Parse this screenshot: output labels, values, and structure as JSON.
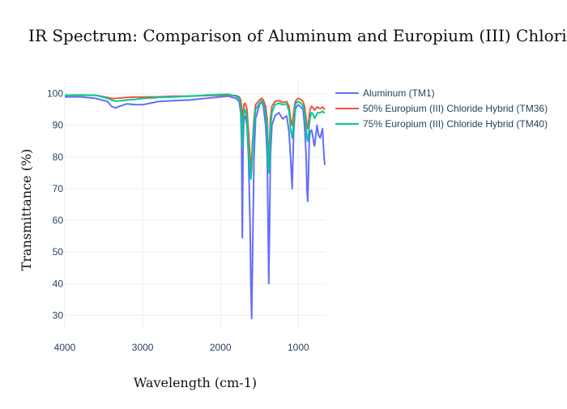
{
  "chart_data": {
    "type": "line",
    "title": "IR Spectrum: Comparison of Aluminum and Europium (III) Chloride Hybrid Products",
    "xlabel": "Wavelength (cm-1)",
    "ylabel": "Transmittance (%)",
    "xlim": [
      4000,
      650
    ],
    "ylim": [
      26,
      104
    ],
    "x_reversed": true,
    "x_ticks": [
      4000,
      3000,
      2000,
      1000
    ],
    "y_ticks": [
      30,
      40,
      50,
      60,
      70,
      80,
      90,
      100
    ],
    "grid": true,
    "legend_position": "right",
    "series": [
      {
        "name": "Aluminum (TM1)",
        "color": "#636efa",
        "x": [
          4000,
          3800,
          3600,
          3450,
          3400,
          3350,
          3300,
          3200,
          3100,
          3000,
          2900,
          2800,
          2600,
          2400,
          2200,
          2000,
          1900,
          1800,
          1760,
          1740,
          1730,
          1720,
          1710,
          1700,
          1690,
          1680,
          1660,
          1640,
          1620,
          1610,
          1600,
          1590,
          1570,
          1550,
          1500,
          1470,
          1450,
          1420,
          1400,
          1390,
          1380,
          1370,
          1360,
          1340,
          1300,
          1250,
          1200,
          1150,
          1120,
          1100,
          1080,
          1060,
          1050,
          1040,
          1020,
          1000,
          980,
          960,
          940,
          920,
          900,
          890,
          880,
          870,
          860,
          850,
          830,
          810,
          800,
          790,
          780,
          770,
          760,
          740,
          720,
          700,
          690,
          680,
          670,
          660
        ],
        "y": [
          99,
          99,
          98.5,
          97.5,
          96,
          95.5,
          96,
          96.8,
          96.5,
          96.5,
          97,
          97.5,
          97.8,
          98,
          98.5,
          99,
          99.2,
          98.5,
          97.5,
          94,
          86,
          54.5,
          84,
          92,
          93,
          92.5,
          90,
          80,
          58,
          40,
          29,
          45,
          80,
          92,
          96.5,
          97.5,
          96,
          90,
          80,
          60,
          40,
          58,
          80,
          90,
          93,
          94,
          92,
          93,
          88,
          80,
          70,
          88,
          92,
          95,
          96,
          96.5,
          96,
          95.5,
          95,
          90,
          80,
          70,
          66,
          75,
          85,
          88,
          88.5,
          86,
          84,
          83.5,
          86,
          88,
          90,
          87,
          86,
          88,
          89,
          84,
          80,
          77.5
        ]
      },
      {
        "name": "50% Europium (III) Chloride Hybrid (TM36)",
        "color": "#ef553b",
        "x": [
          4000,
          3800,
          3600,
          3450,
          3400,
          3350,
          3300,
          3200,
          3100,
          3000,
          2900,
          2800,
          2600,
          2400,
          2200,
          2000,
          1900,
          1800,
          1760,
          1740,
          1730,
          1720,
          1710,
          1700,
          1690,
          1680,
          1660,
          1640,
          1620,
          1610,
          1600,
          1590,
          1570,
          1550,
          1500,
          1470,
          1450,
          1420,
          1400,
          1390,
          1380,
          1370,
          1360,
          1340,
          1300,
          1250,
          1200,
          1150,
          1120,
          1100,
          1080,
          1060,
          1050,
          1040,
          1020,
          1000,
          980,
          960,
          940,
          920,
          900,
          890,
          880,
          870,
          860,
          850,
          830,
          810,
          800,
          790,
          780,
          770,
          760,
          740,
          720,
          700,
          690,
          680,
          670,
          660
        ],
        "y": [
          99.5,
          99.5,
          99.5,
          98.8,
          98.5,
          98.5,
          98.6,
          98.8,
          98.9,
          98.9,
          99,
          99,
          99.2,
          99.2,
          99.4,
          99.5,
          99.5,
          99.4,
          99,
          98,
          96,
          88,
          94,
          96.5,
          97,
          96.8,
          95,
          88,
          80,
          76,
          78,
          84,
          92,
          96.5,
          98,
          98.5,
          98,
          96,
          92,
          84,
          80,
          84,
          92,
          96,
          97.5,
          97.8,
          97.2,
          97.5,
          96,
          92,
          90,
          94,
          96,
          97.5,
          98.2,
          98.5,
          98.3,
          98,
          97.5,
          96,
          92,
          90,
          89,
          91,
          93,
          95,
          96,
          95.5,
          95,
          94.8,
          95.2,
          95.5,
          95.8,
          95.5,
          95.3,
          95.5,
          95.8,
          95.5,
          95.2,
          95
        ]
      },
      {
        "name": "75% Europium (III) Chloride Hybrid (TM40)",
        "color": "#00cc96",
        "x": [
          4000,
          3800,
          3600,
          3450,
          3400,
          3350,
          3300,
          3200,
          3100,
          3000,
          2900,
          2800,
          2600,
          2400,
          2200,
          2000,
          1900,
          1800,
          1760,
          1740,
          1730,
          1720,
          1710,
          1700,
          1690,
          1680,
          1660,
          1640,
          1620,
          1610,
          1600,
          1590,
          1570,
          1550,
          1500,
          1470,
          1450,
          1420,
          1400,
          1390,
          1380,
          1370,
          1360,
          1340,
          1300,
          1250,
          1200,
          1150,
          1120,
          1100,
          1080,
          1060,
          1050,
          1040,
          1020,
          1000,
          980,
          960,
          940,
          920,
          900,
          890,
          880,
          870,
          860,
          850,
          830,
          810,
          800,
          790,
          780,
          770,
          760,
          740,
          720,
          700,
          690,
          680,
          670,
          660
        ],
        "y": [
          99.5,
          99.6,
          99.5,
          98.5,
          98,
          97.6,
          97.7,
          98,
          98.2,
          98.5,
          98.6,
          98.8,
          99,
          99.2,
          99.5,
          99.7,
          99.8,
          99.2,
          98.5,
          96,
          92,
          83,
          90,
          94,
          95,
          94.5,
          92,
          82,
          75,
          73,
          76,
          82,
          90,
          95,
          97,
          97.8,
          97,
          94,
          89,
          80,
          75,
          80,
          89,
          94,
          96.5,
          97,
          96.5,
          96.8,
          94.5,
          89,
          86,
          91,
          94,
          96.5,
          97.3,
          97.5,
          97.2,
          96.8,
          96,
          94,
          89,
          86,
          85,
          87,
          90,
          92.5,
          94,
          93.5,
          92.8,
          92.2,
          92.8,
          93.2,
          93.8,
          94,
          94,
          94.2,
          94.5,
          94.2,
          94,
          94
        ]
      }
    ]
  }
}
